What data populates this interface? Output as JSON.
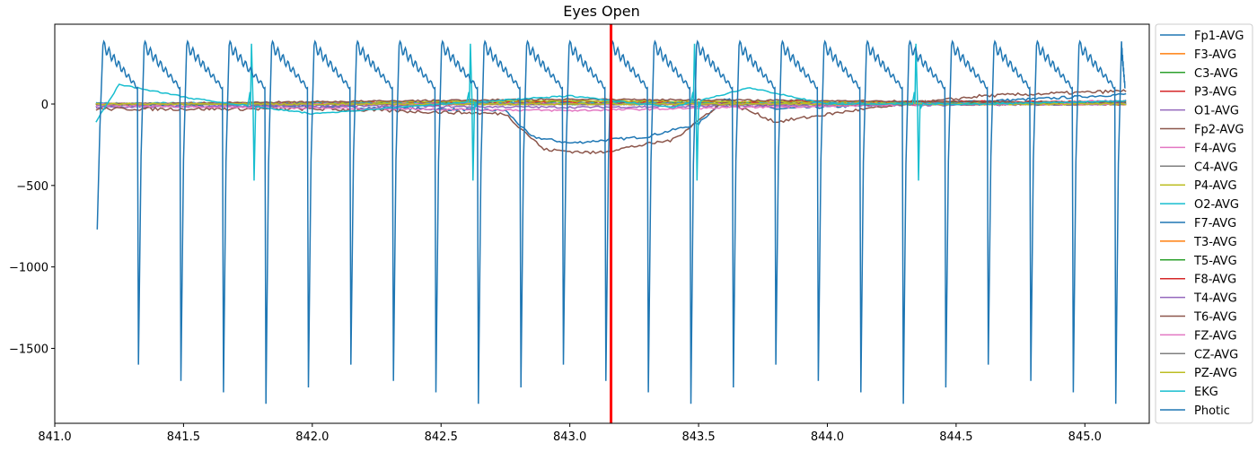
{
  "chart_data": {
    "type": "line",
    "title": "Eyes Open",
    "xlabel": "",
    "ylabel": "",
    "xlim": [
      841.0,
      845.25
    ],
    "ylim": [
      -1960,
      490
    ],
    "x_ticks": [
      841.0,
      841.5,
      842.0,
      842.5,
      843.0,
      843.5,
      844.0,
      844.5,
      845.0
    ],
    "x_tick_labels": [
      "841.0",
      "841.5",
      "842.0",
      "842.5",
      "843.0",
      "843.5",
      "844.0",
      "844.5",
      "845.0"
    ],
    "y_ticks": [
      0,
      -500,
      -1000,
      -1500
    ],
    "y_tick_labels": [
      "0",
      "−500",
      "−1000",
      "−1500"
    ],
    "grid": false,
    "legend_position": "outside-right",
    "marker_line": {
      "x": 843.16,
      "color": "#ff0000"
    },
    "x_range_data": [
      841.16,
      845.16
    ],
    "series": [
      {
        "name": "Fp1-AVG",
        "color": "#1f77b4",
        "keypoints": [
          [
            841.16,
            -10
          ],
          [
            842.0,
            -15
          ],
          [
            842.75,
            -40
          ],
          [
            842.85,
            -200
          ],
          [
            843.0,
            -240
          ],
          [
            843.3,
            -200
          ],
          [
            843.5,
            -120
          ],
          [
            843.6,
            30
          ],
          [
            843.8,
            -30
          ],
          [
            844.3,
            0
          ],
          [
            844.8,
            30
          ],
          [
            845.16,
            60
          ]
        ],
        "noise": 8
      },
      {
        "name": "F3-AVG",
        "color": "#ff7f0e",
        "keypoints": [
          [
            841.16,
            0
          ],
          [
            845.16,
            0
          ]
        ],
        "noise": 6
      },
      {
        "name": "C3-AVG",
        "color": "#2ca02c",
        "keypoints": [
          [
            841.16,
            0
          ],
          [
            843.0,
            15
          ],
          [
            845.16,
            5
          ]
        ],
        "noise": 6
      },
      {
        "name": "P3-AVG",
        "color": "#d62728",
        "keypoints": [
          [
            841.16,
            0
          ],
          [
            843.0,
            10
          ],
          [
            845.16,
            15
          ]
        ],
        "noise": 6
      },
      {
        "name": "O1-AVG",
        "color": "#9467bd",
        "keypoints": [
          [
            841.16,
            -20
          ],
          [
            842.0,
            -10
          ],
          [
            843.0,
            -20
          ],
          [
            844.0,
            -10
          ],
          [
            845.16,
            0
          ]
        ],
        "noise": 6
      },
      {
        "name": "Fp2-AVG",
        "color": "#8c564b",
        "keypoints": [
          [
            841.16,
            -30
          ],
          [
            842.0,
            -30
          ],
          [
            842.75,
            -60
          ],
          [
            842.9,
            -280
          ],
          [
            843.1,
            -300
          ],
          [
            843.4,
            -220
          ],
          [
            843.6,
            20
          ],
          [
            843.8,
            -110
          ],
          [
            844.1,
            -40
          ],
          [
            844.6,
            50
          ],
          [
            845.16,
            80
          ]
        ],
        "noise": 10
      },
      {
        "name": "F4-AVG",
        "color": "#e377c2",
        "keypoints": [
          [
            841.16,
            -10
          ],
          [
            843.0,
            -40
          ],
          [
            845.16,
            20
          ]
        ],
        "noise": 6
      },
      {
        "name": "C4-AVG",
        "color": "#7f7f7f",
        "keypoints": [
          [
            841.16,
            0
          ],
          [
            845.16,
            0
          ]
        ],
        "noise": 5
      },
      {
        "name": "P4-AVG",
        "color": "#bcbd22",
        "keypoints": [
          [
            841.16,
            0
          ],
          [
            843.0,
            20
          ],
          [
            845.16,
            0
          ]
        ],
        "noise": 5
      },
      {
        "name": "O2-AVG",
        "color": "#17becf",
        "keypoints": [
          [
            841.16,
            5
          ],
          [
            845.16,
            5
          ]
        ],
        "noise": 5
      },
      {
        "name": "F7-AVG",
        "color": "#1f77b4",
        "keypoints": [
          [
            841.16,
            0
          ],
          [
            845.16,
            0
          ]
        ],
        "noise": 5
      },
      {
        "name": "T3-AVG",
        "color": "#ff7f0e",
        "keypoints": [
          [
            841.16,
            0
          ],
          [
            845.16,
            0
          ]
        ],
        "noise": 5
      },
      {
        "name": "T5-AVG",
        "color": "#2ca02c",
        "keypoints": [
          [
            841.16,
            0
          ],
          [
            845.16,
            0
          ]
        ],
        "noise": 5
      },
      {
        "name": "F8-AVG",
        "color": "#d62728",
        "keypoints": [
          [
            841.16,
            0
          ],
          [
            845.16,
            0
          ]
        ],
        "noise": 5
      },
      {
        "name": "T4-AVG",
        "color": "#9467bd",
        "keypoints": [
          [
            841.16,
            0
          ],
          [
            845.16,
            0
          ]
        ],
        "noise": 5
      },
      {
        "name": "T6-AVG",
        "color": "#8c564b",
        "keypoints": [
          [
            841.16,
            0
          ],
          [
            843.0,
            30
          ],
          [
            845.16,
            10
          ]
        ],
        "noise": 5
      },
      {
        "name": "FZ-AVG",
        "color": "#e377c2",
        "keypoints": [
          [
            841.16,
            0
          ],
          [
            845.16,
            0
          ]
        ],
        "noise": 5
      },
      {
        "name": "CZ-AVG",
        "color": "#7f7f7f",
        "keypoints": [
          [
            841.16,
            0
          ],
          [
            845.16,
            0
          ]
        ],
        "noise": 5
      },
      {
        "name": "PZ-AVG",
        "color": "#bcbd22",
        "keypoints": [
          [
            841.16,
            0
          ],
          [
            845.16,
            0
          ]
        ],
        "noise": 5
      },
      {
        "name": "EKG",
        "color": "#17becf",
        "pulse": {
          "times": [
            841.77,
            842.62,
            843.49,
            844.35
          ],
          "peak": 370,
          "trough": -470
        },
        "keypoints": [
          [
            841.16,
            -110
          ],
          [
            841.25,
            120
          ],
          [
            841.55,
            30
          ],
          [
            842.0,
            -60
          ],
          [
            842.5,
            0
          ],
          [
            843.0,
            50
          ],
          [
            843.4,
            -20
          ],
          [
            843.7,
            100
          ],
          [
            844.0,
            0
          ],
          [
            844.6,
            0
          ],
          [
            845.16,
            20
          ]
        ],
        "noise": 4
      },
      {
        "name": "Photic",
        "color": "#1f77b4",
        "flash": {
          "times": [
            841.165,
            841.325,
            841.49,
            841.655,
            841.82,
            841.985,
            842.15,
            842.315,
            842.48,
            842.645,
            842.81,
            842.975,
            843.14,
            843.305,
            843.47,
            843.635,
            843.8,
            843.965,
            844.13,
            844.295,
            844.46,
            844.625,
            844.79,
            844.955,
            845.12
          ],
          "troughs": [
            -770,
            -1600,
            -1700,
            -1770,
            -1840,
            -1740,
            -1600,
            -1700,
            -1770,
            -1840,
            -1740,
            -1600,
            -1700,
            -1770,
            -1840,
            -1740,
            -1600,
            -1700,
            -1770,
            -1840,
            -1740,
            -1600,
            -1700,
            -1770,
            -1840
          ],
          "peak": 360,
          "decay_to": 100
        }
      }
    ]
  }
}
